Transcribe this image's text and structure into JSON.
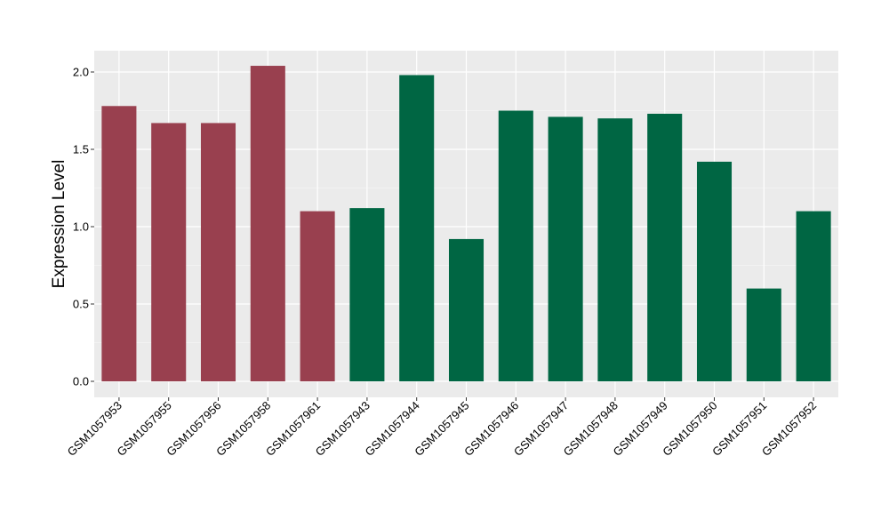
{
  "chart_data": {
    "type": "bar",
    "title": "",
    "xlabel": "",
    "ylabel": "Expression Level",
    "ylim": [
      0,
      2.1
    ],
    "yticks": [
      "0.0",
      "0.5",
      "1.0",
      "1.5",
      "2.0"
    ],
    "ytick_values": [
      0,
      0.5,
      1.0,
      1.5,
      2.0
    ],
    "grid": true,
    "legend": "none",
    "categories": [
      "GSM1057953",
      "GSM1057955",
      "GSM1057956",
      "GSM1057958",
      "GSM1057961",
      "GSM1057943",
      "GSM1057944",
      "GSM1057945",
      "GSM1057946",
      "GSM1057947",
      "GSM1057948",
      "GSM1057949",
      "GSM1057950",
      "GSM1057951",
      "GSM1057952"
    ],
    "values": [
      1.78,
      1.67,
      1.67,
      2.04,
      1.1,
      1.12,
      1.98,
      0.92,
      1.75,
      1.71,
      1.7,
      1.73,
      1.42,
      0.6,
      1.1
    ],
    "bar_groups": [
      0,
      0,
      0,
      0,
      0,
      1,
      1,
      1,
      1,
      1,
      1,
      1,
      1,
      1,
      1
    ],
    "group_colors": [
      "#99404F",
      "#006643"
    ],
    "panel_background": "#EBEBEB",
    "grid_color": "#FFFFFF"
  }
}
